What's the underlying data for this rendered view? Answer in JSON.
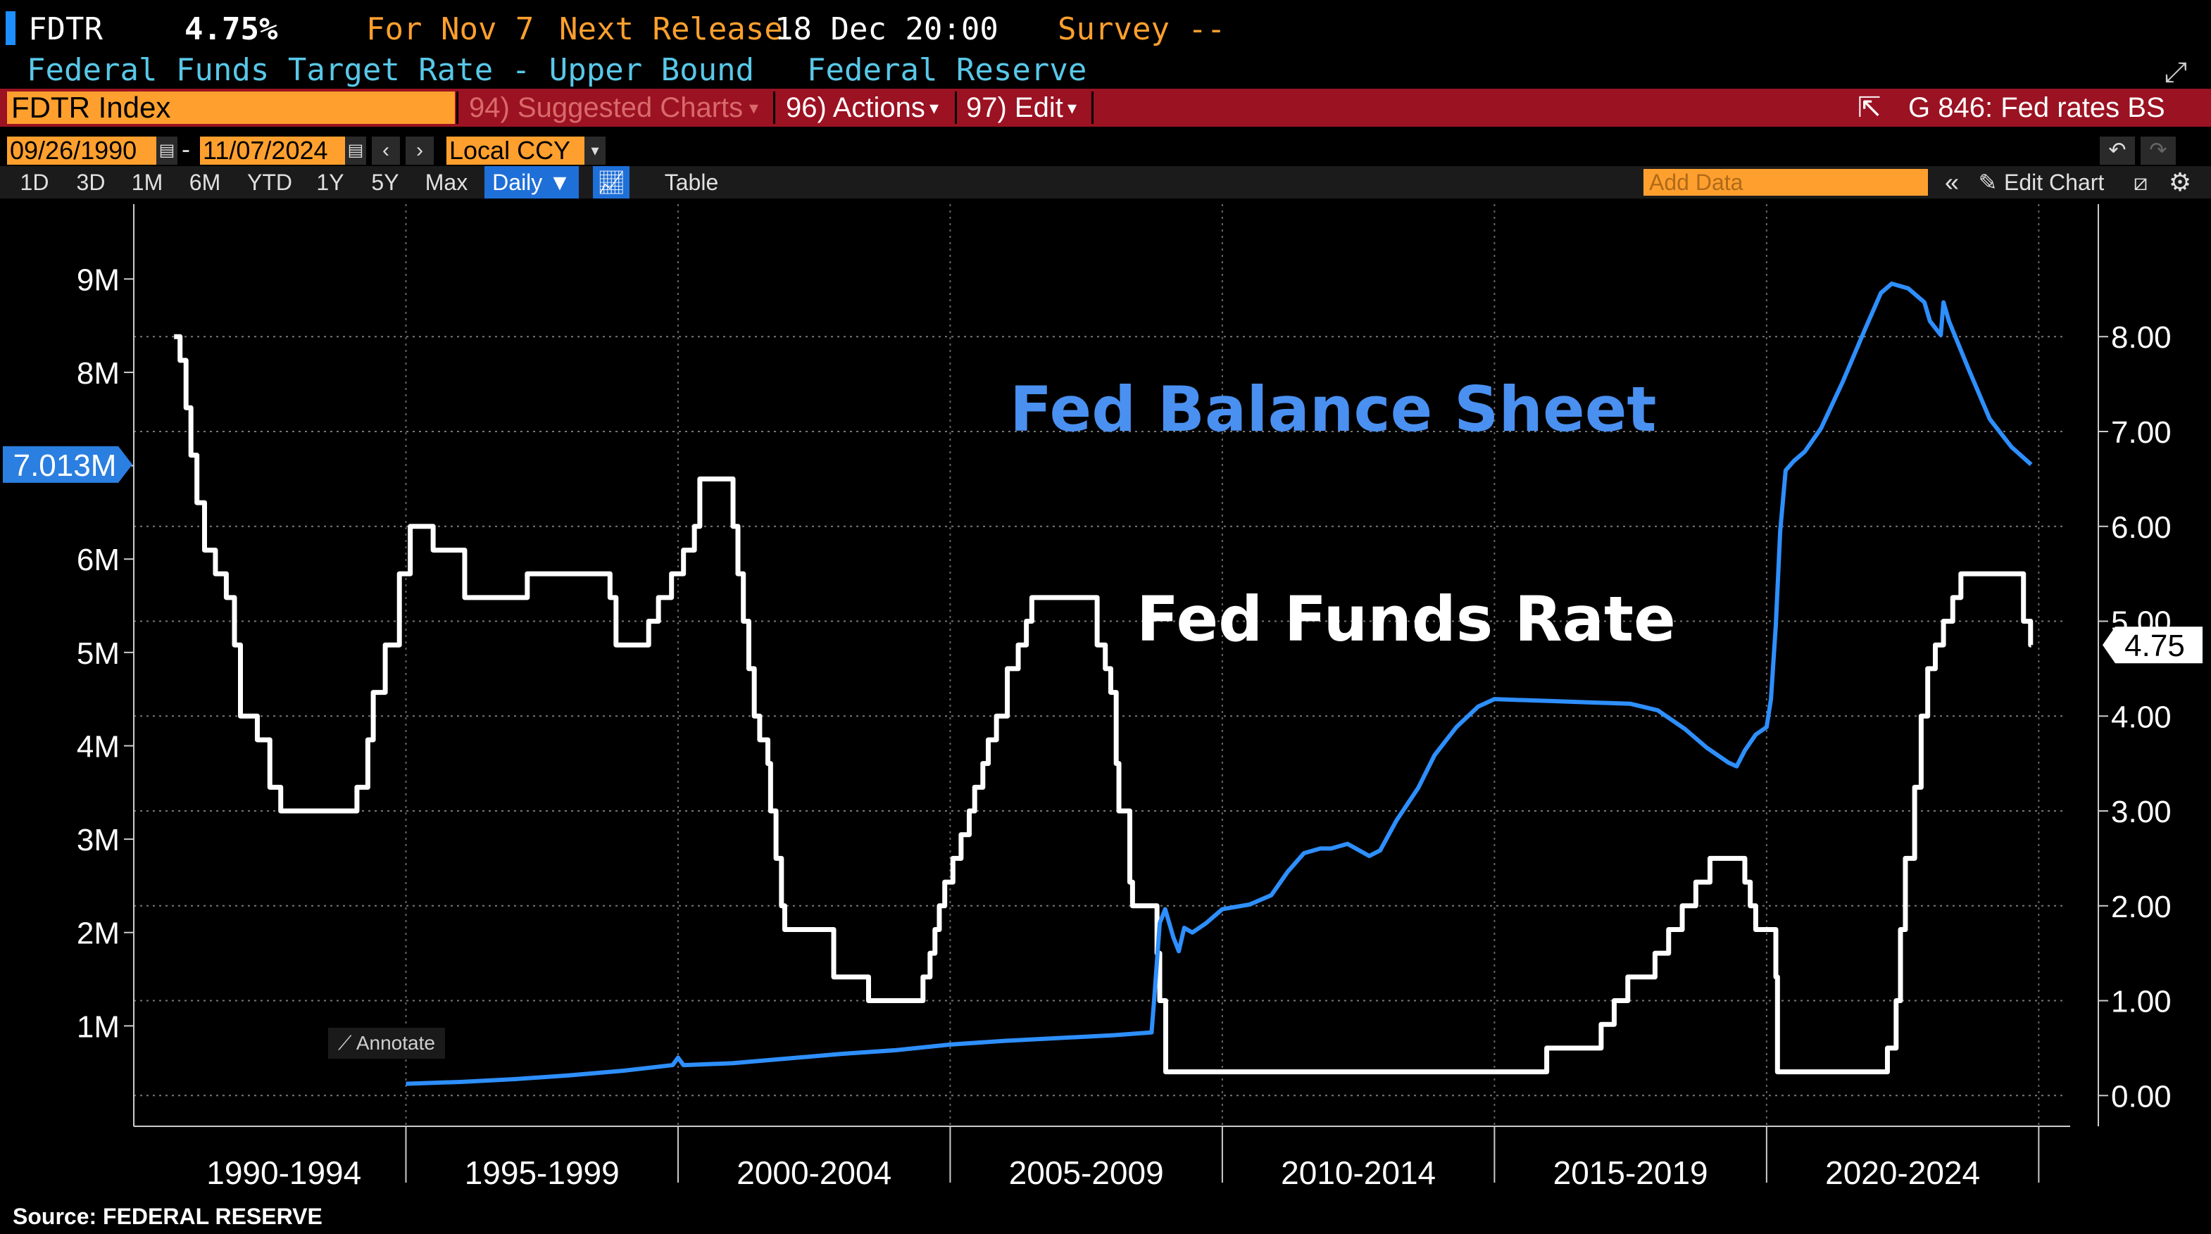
{
  "header": {
    "ticker": "FDTR",
    "value": "4.75%",
    "for_label": "For Nov 7",
    "next_release_label": "Next Release",
    "next_release_value": "18 Dec 20:00",
    "survey_label": "Survey --",
    "description": "Federal Funds Target Rate - Upper Bound",
    "source_org": "Federal Reserve"
  },
  "toolbar": {
    "index_field": "FDTR Index",
    "suggested_charts": "94) Suggested Charts",
    "actions": "96) Actions",
    "edit": "97) Edit",
    "chart_name": "G 846: Fed rates BS"
  },
  "range": {
    "start": "09/26/1990",
    "end": "11/07/2024",
    "currency": "Local CCY"
  },
  "tabs": [
    "1D",
    "3D",
    "1M",
    "6M",
    "YTD",
    "1Y",
    "5Y",
    "Max"
  ],
  "frequency": "Daily",
  "table_label": "Table",
  "add_data_placeholder": "Add Data",
  "edit_chart_label": "Edit Chart",
  "annotate_label": "Annotate",
  "source": "Source:  FEDERAL RESERVE",
  "colors": {
    "balance_sheet": "#2e8fff",
    "fed_funds": "#ffffff",
    "accent": "#ffa02e",
    "menu_bar": "#9b1222",
    "label_balance": "#4a90f0"
  },
  "chart_data": {
    "type": "line",
    "x_categories": [
      "1990-1994",
      "1995-1999",
      "2000-2004",
      "2005-2009",
      "2010-2014",
      "2015-2019",
      "2020-2024"
    ],
    "left_axis": {
      "ticks": [
        "1M",
        "2M",
        "3M",
        "4M",
        "5M",
        "6M",
        "7M",
        "8M",
        "9M"
      ],
      "range": [
        0,
        9.5
      ],
      "unit": "M"
    },
    "right_axis": {
      "ticks": [
        "0.00",
        "1.00",
        "2.00",
        "3.00",
        "4.00",
        "5.00",
        "6.00",
        "7.00",
        "8.00"
      ],
      "range": [
        -0.25,
        9.1
      ]
    },
    "left_last_label": "7.013M",
    "right_last_label": "4.75",
    "annotations": [
      {
        "text": "Fed Balance Sheet"
      },
      {
        "text": "Fed Funds Rate"
      }
    ],
    "series": [
      {
        "name": "Fed Funds Rate",
        "axis": "right",
        "step": true,
        "points": [
          [
            1990.74,
            8.0
          ],
          [
            1990.85,
            7.75
          ],
          [
            1990.96,
            7.25
          ],
          [
            1991.05,
            6.75
          ],
          [
            1991.16,
            6.25
          ],
          [
            1991.3,
            5.75
          ],
          [
            1991.5,
            5.5
          ],
          [
            1991.7,
            5.25
          ],
          [
            1991.85,
            4.75
          ],
          [
            1991.96,
            4.0
          ],
          [
            1992.27,
            3.75
          ],
          [
            1992.5,
            3.25
          ],
          [
            1992.7,
            3.0
          ],
          [
            1994.1,
            3.25
          ],
          [
            1994.3,
            3.75
          ],
          [
            1994.4,
            4.25
          ],
          [
            1994.62,
            4.75
          ],
          [
            1994.88,
            5.5
          ],
          [
            1995.08,
            6.0
          ],
          [
            1995.5,
            5.75
          ],
          [
            1996.08,
            5.25
          ],
          [
            1997.23,
            5.5
          ],
          [
            1998.75,
            5.25
          ],
          [
            1998.86,
            4.75
          ],
          [
            1999.46,
            5.0
          ],
          [
            1999.64,
            5.25
          ],
          [
            1999.88,
            5.5
          ],
          [
            2000.1,
            5.75
          ],
          [
            2000.3,
            6.0
          ],
          [
            2000.4,
            6.5
          ],
          [
            2001.01,
            6.0
          ],
          [
            2001.1,
            5.5
          ],
          [
            2001.2,
            5.0
          ],
          [
            2001.3,
            4.5
          ],
          [
            2001.4,
            4.0
          ],
          [
            2001.5,
            3.75
          ],
          [
            2001.65,
            3.5
          ],
          [
            2001.7,
            3.0
          ],
          [
            2001.8,
            2.5
          ],
          [
            2001.9,
            2.0
          ],
          [
            2001.96,
            1.75
          ],
          [
            2002.86,
            1.25
          ],
          [
            2003.5,
            1.0
          ],
          [
            2004.5,
            1.25
          ],
          [
            2004.63,
            1.5
          ],
          [
            2004.72,
            1.75
          ],
          [
            2004.8,
            2.0
          ],
          [
            2004.9,
            2.25
          ],
          [
            2005.05,
            2.5
          ],
          [
            2005.2,
            2.75
          ],
          [
            2005.35,
            3.0
          ],
          [
            2005.45,
            3.25
          ],
          [
            2005.6,
            3.5
          ],
          [
            2005.7,
            3.75
          ],
          [
            2005.85,
            4.0
          ],
          [
            2006.05,
            4.5
          ],
          [
            2006.25,
            4.75
          ],
          [
            2006.4,
            5.0
          ],
          [
            2006.5,
            5.25
          ],
          [
            2007.7,
            4.75
          ],
          [
            2007.85,
            4.5
          ],
          [
            2007.95,
            4.25
          ],
          [
            2008.05,
            3.5
          ],
          [
            2008.1,
            3.0
          ],
          [
            2008.3,
            2.25
          ],
          [
            2008.35,
            2.0
          ],
          [
            2008.8,
            1.5
          ],
          [
            2008.85,
            1.0
          ],
          [
            2008.96,
            0.25
          ],
          [
            2015.96,
            0.5
          ],
          [
            2016.96,
            0.75
          ],
          [
            2017.2,
            1.0
          ],
          [
            2017.45,
            1.25
          ],
          [
            2017.95,
            1.5
          ],
          [
            2018.2,
            1.75
          ],
          [
            2018.45,
            2.0
          ],
          [
            2018.7,
            2.25
          ],
          [
            2018.96,
            2.5
          ],
          [
            2019.6,
            2.25
          ],
          [
            2019.7,
            2.0
          ],
          [
            2019.8,
            1.75
          ],
          [
            2020.17,
            1.25
          ],
          [
            2020.2,
            0.25
          ],
          [
            2022.22,
            0.5
          ],
          [
            2022.38,
            1.0
          ],
          [
            2022.46,
            1.75
          ],
          [
            2022.55,
            2.5
          ],
          [
            2022.72,
            3.25
          ],
          [
            2022.84,
            4.0
          ],
          [
            2022.96,
            4.5
          ],
          [
            2023.1,
            4.75
          ],
          [
            2023.25,
            5.0
          ],
          [
            2023.42,
            5.25
          ],
          [
            2023.57,
            5.5
          ],
          [
            2024.72,
            5.0
          ],
          [
            2024.85,
            4.75
          ],
          [
            2024.86,
            4.75
          ]
        ]
      },
      {
        "name": "Fed Balance Sheet",
        "axis": "left",
        "step": false,
        "points": [
          [
            1995.0,
            0.38
          ],
          [
            1996.0,
            0.4
          ],
          [
            1997.0,
            0.43
          ],
          [
            1998.0,
            0.47
          ],
          [
            1999.0,
            0.52
          ],
          [
            1999.9,
            0.58
          ],
          [
            2000.0,
            0.66
          ],
          [
            2000.1,
            0.58
          ],
          [
            2001.0,
            0.6
          ],
          [
            2002.0,
            0.65
          ],
          [
            2003.0,
            0.7
          ],
          [
            2004.0,
            0.74
          ],
          [
            2005.0,
            0.8
          ],
          [
            2006.0,
            0.84
          ],
          [
            2007.0,
            0.87
          ],
          [
            2008.0,
            0.9
          ],
          [
            2008.7,
            0.93
          ],
          [
            2008.75,
            1.3
          ],
          [
            2008.85,
            2.1
          ],
          [
            2008.95,
            2.25
          ],
          [
            2009.1,
            1.95
          ],
          [
            2009.2,
            1.8
          ],
          [
            2009.3,
            2.05
          ],
          [
            2009.45,
            2.0
          ],
          [
            2009.7,
            2.1
          ],
          [
            2010.0,
            2.25
          ],
          [
            2010.5,
            2.3
          ],
          [
            2010.9,
            2.4
          ],
          [
            2011.2,
            2.65
          ],
          [
            2011.5,
            2.85
          ],
          [
            2011.8,
            2.9
          ],
          [
            2012.0,
            2.9
          ],
          [
            2012.3,
            2.95
          ],
          [
            2012.7,
            2.82
          ],
          [
            2012.9,
            2.88
          ],
          [
            2013.2,
            3.2
          ],
          [
            2013.6,
            3.55
          ],
          [
            2013.9,
            3.9
          ],
          [
            2014.3,
            4.2
          ],
          [
            2014.7,
            4.42
          ],
          [
            2015.0,
            4.5
          ],
          [
            2016.0,
            4.48
          ],
          [
            2017.0,
            4.46
          ],
          [
            2017.5,
            4.45
          ],
          [
            2018.0,
            4.38
          ],
          [
            2018.5,
            4.18
          ],
          [
            2018.9,
            3.98
          ],
          [
            2019.3,
            3.82
          ],
          [
            2019.45,
            3.78
          ],
          [
            2019.6,
            3.95
          ],
          [
            2019.8,
            4.12
          ],
          [
            2020.0,
            4.2
          ],
          [
            2020.08,
            4.5
          ],
          [
            2020.17,
            5.3
          ],
          [
            2020.25,
            6.3
          ],
          [
            2020.35,
            6.95
          ],
          [
            2020.5,
            7.05
          ],
          [
            2020.7,
            7.15
          ],
          [
            2021.0,
            7.4
          ],
          [
            2021.4,
            7.9
          ],
          [
            2021.8,
            8.45
          ],
          [
            2022.1,
            8.85
          ],
          [
            2022.3,
            8.95
          ],
          [
            2022.6,
            8.9
          ],
          [
            2022.9,
            8.75
          ],
          [
            2023.0,
            8.55
          ],
          [
            2023.2,
            8.4
          ],
          [
            2023.25,
            8.75
          ],
          [
            2023.35,
            8.55
          ],
          [
            2023.7,
            8.05
          ],
          [
            2024.1,
            7.5
          ],
          [
            2024.5,
            7.2
          ],
          [
            2024.86,
            7.013
          ]
        ]
      }
    ]
  }
}
